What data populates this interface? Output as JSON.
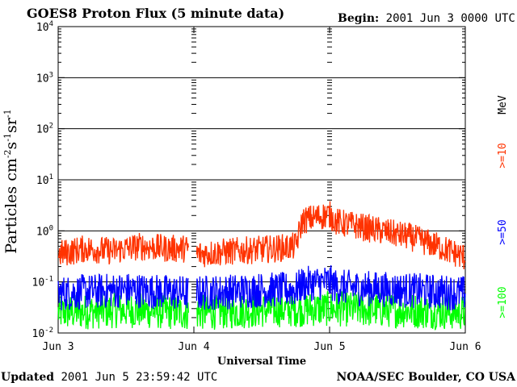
{
  "title_prefix": "GOES8",
  "title_rest": "Proton Flux (5 minute data)",
  "begin_label": "Begin:",
  "begin_value": "2001 Jun 3 0000 UTC",
  "updated_label": "Updated",
  "updated_value": "2001 Jun  5 23:59:42 UTC",
  "credit": "NOAA/SEC Boulder, CO USA",
  "chart_data": {
    "type": "line",
    "title": "GOES8 Proton Flux (5 minute data)",
    "ylabel": "Particles cm-2s-1sr-1",
    "xlabel": "Universal Time",
    "yscale": "log",
    "ylim": [
      0.01,
      10000
    ],
    "xlim": [
      0,
      3
    ],
    "x_tick_labels": [
      "Jun 3",
      "Jun 4",
      "Jun 5",
      "Jun 6"
    ],
    "y_ticks": [
      {
        "base": "10",
        "exp": "-2"
      },
      {
        "base": "10",
        "exp": "-1"
      },
      {
        "base": "10",
        "exp": "0"
      },
      {
        "base": "10",
        "exp": "1"
      },
      {
        "base": "10",
        "exp": "2"
      },
      {
        "base": "10",
        "exp": "3"
      },
      {
        "base": "10",
        "exp": "4"
      }
    ],
    "units_label": "MeV",
    "gap_days": [
      0.96,
      1.02
    ],
    "series": [
      {
        "name": ">=10",
        "color": "#ff3300",
        "days": [
          0,
          0.2,
          0.4,
          0.6,
          0.8,
          0.96,
          1.02,
          1.3,
          1.6,
          1.75,
          1.8,
          2.0,
          2.05,
          2.3,
          2.6,
          2.8,
          3.0
        ],
        "level": [
          0.35,
          0.45,
          0.4,
          0.5,
          0.45,
          0.45,
          0.35,
          0.4,
          0.45,
          0.5,
          1.6,
          2.1,
          1.5,
          1.1,
          0.75,
          0.5,
          0.3
        ]
      },
      {
        "name": ">=50",
        "color": "#0000ff",
        "days": [
          0,
          0.5,
          0.96,
          1.02,
          1.5,
          1.75,
          1.8,
          2.0,
          2.05,
          2.5,
          3.0
        ],
        "level": [
          0.06,
          0.07,
          0.06,
          0.06,
          0.07,
          0.07,
          0.09,
          0.1,
          0.08,
          0.07,
          0.06
        ]
      },
      {
        "name": ">=100",
        "color": "#00ff00",
        "days": [
          0,
          0.5,
          0.96,
          1.02,
          1.5,
          2.0,
          2.5,
          3.0
        ],
        "level": [
          0.025,
          0.028,
          0.025,
          0.025,
          0.028,
          0.03,
          0.028,
          0.025
        ]
      }
    ]
  }
}
